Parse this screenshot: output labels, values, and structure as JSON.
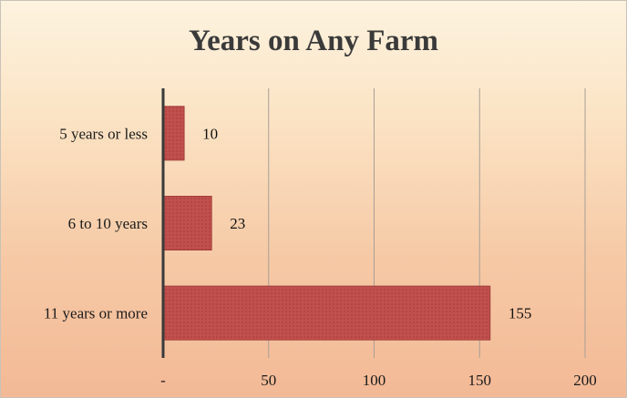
{
  "chart_data": {
    "type": "bar",
    "orientation": "horizontal",
    "title": "Years on Any Farm",
    "categories": [
      "5 years or less",
      "6 to 10 years",
      "11 years or more"
    ],
    "values": [
      10,
      23,
      155
    ],
    "xlim": [
      0,
      200
    ],
    "xticks": [
      "-",
      "50",
      "100",
      "150",
      "200"
    ],
    "xtick_values": [
      0,
      50,
      100,
      150,
      200
    ],
    "grid": "vertical",
    "legend": "none",
    "colors": {
      "bar": "#c0504d",
      "bar_edge": "#9c3a36",
      "grid": "#a89f96",
      "axis": "#3a3a3a"
    }
  }
}
